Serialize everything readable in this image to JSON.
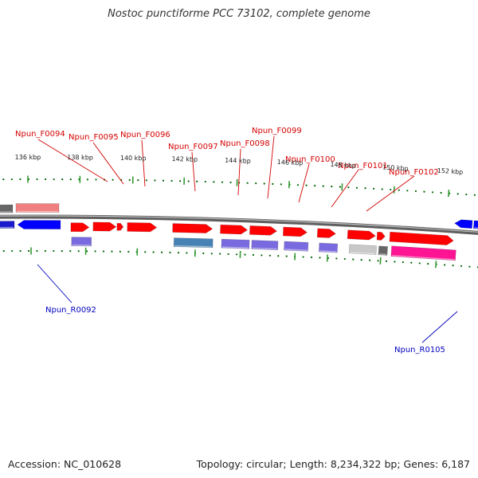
{
  "title": "Nostoc punctiforme PCC 73102, complete genome",
  "footer": {
    "accession": "Accession: NC_010628",
    "summary": "Topology: circular; Length: 8,234,322 bp; Genes: 6,187"
  },
  "colors": {
    "forward_label": "#d40000",
    "reverse_label": "#0000c0",
    "backbone": "#808080",
    "tick_major": "#339933",
    "tick_minor": "#006600"
  },
  "scale_ticks": [
    "136 kbp",
    "138 kbp",
    "140 kbp",
    "142 kbp",
    "144 kbp",
    "146 kbp",
    "148 kbp",
    "150 kbp",
    "152 kbp"
  ],
  "forward_labels": [
    "Npun_F0094",
    "Npun_F0095",
    "Npun_F0096",
    "Npun_F0097",
    "Npun_F0098",
    "Npun_F0099",
    "Npun_F0100",
    "Npun_F0101",
    "Npun_F0102"
  ],
  "reverse_labels": [
    "Npun_R0092",
    "Npun_R0105"
  ]
}
